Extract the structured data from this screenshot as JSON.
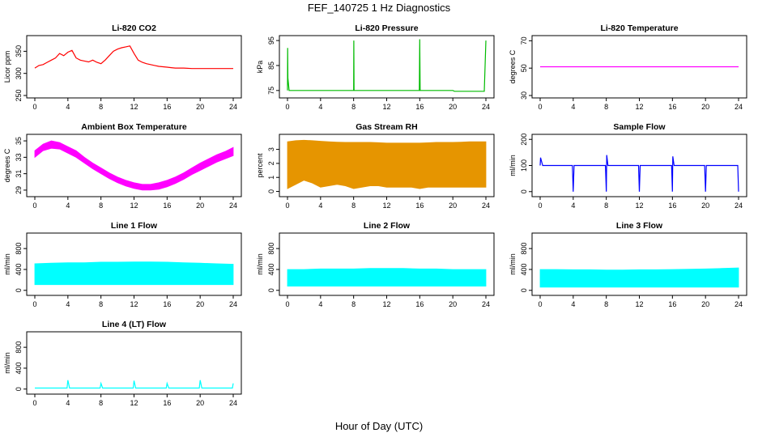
{
  "figure": {
    "title": "FEF_140725  1 Hz Diagnostics",
    "xlabel": "Hour of Day (UTC)"
  },
  "chart_data": [
    {
      "type": "line",
      "title": "Li-820 CO2",
      "ylabel": "Licor ppm",
      "color": "#ff0000",
      "ylim": [
        250,
        380
      ],
      "yticks": [
        250,
        300,
        350
      ],
      "xlim": [
        0,
        24
      ],
      "xticks": [
        0,
        4,
        8,
        12,
        16,
        20,
        24
      ],
      "x": [
        0,
        0.5,
        1,
        1.5,
        2,
        2.5,
        3,
        3.5,
        4,
        4.5,
        5,
        5.5,
        6,
        6.5,
        7,
        7.5,
        8,
        8.5,
        9,
        9.5,
        10,
        10.5,
        11,
        11.5,
        12,
        12.5,
        13,
        13.5,
        14,
        14.5,
        15,
        15.5,
        16,
        16.5,
        17,
        18,
        19,
        20,
        21,
        22,
        23,
        24
      ],
      "y": [
        312,
        318,
        320,
        325,
        330,
        335,
        345,
        340,
        348,
        352,
        335,
        330,
        328,
        326,
        330,
        325,
        322,
        330,
        340,
        350,
        355,
        358,
        360,
        362,
        345,
        330,
        325,
        322,
        320,
        318,
        316,
        315,
        314,
        313,
        312,
        312,
        311,
        311,
        311,
        311,
        311,
        311
      ]
    },
    {
      "type": "line",
      "title": "Li-820 Pressure",
      "ylabel": "kPa",
      "color": "#00bb00",
      "ylim": [
        73,
        96
      ],
      "yticks": [
        75,
        85,
        95
      ],
      "xlim": [
        0,
        24
      ],
      "xticks": [
        0,
        4,
        8,
        12,
        16,
        20,
        24
      ],
      "x": [
        0,
        0.02,
        0.05,
        0.2,
        8.0,
        8.02,
        8.05,
        15.95,
        16.0,
        16.05,
        20,
        20.2,
        23.8,
        24.0
      ],
      "y": [
        75,
        92,
        80,
        75,
        75,
        95,
        75,
        75,
        95.5,
        75,
        75,
        74.7,
        74.7,
        95
      ]
    },
    {
      "type": "line",
      "title": "Li-820 Temperature",
      "ylabel": "degrees C",
      "color": "#ff00ff",
      "ylim": [
        30,
        72
      ],
      "yticks": [
        30,
        50,
        70
      ],
      "xlim": [
        0,
        24
      ],
      "xticks": [
        0,
        4,
        8,
        12,
        16,
        20,
        24
      ],
      "x": [
        0,
        24
      ],
      "y": [
        51,
        51
      ]
    },
    {
      "type": "area",
      "title": "Ambient Box Temperature",
      "ylabel": "degrees C",
      "color": "#ff00ff",
      "ylim": [
        28.5,
        35.5
      ],
      "yticks": [
        29,
        31,
        33,
        35
      ],
      "xlim": [
        0,
        24
      ],
      "xticks": [
        0,
        4,
        8,
        12,
        16,
        20,
        24
      ],
      "x": [
        0,
        1,
        2,
        3,
        4,
        5,
        6,
        7,
        8,
        9,
        10,
        11,
        12,
        13,
        14,
        15,
        16,
        17,
        18,
        19,
        20,
        21,
        22,
        23,
        24
      ],
      "ymin": [
        33.0,
        33.8,
        34.1,
        34.0,
        33.5,
        33.0,
        32.3,
        31.6,
        31.0,
        30.4,
        29.9,
        29.5,
        29.2,
        29.0,
        29.0,
        29.1,
        29.4,
        29.8,
        30.3,
        30.9,
        31.4,
        31.9,
        32.4,
        32.8,
        33.2
      ],
      "ymax": [
        33.8,
        34.6,
        35.0,
        34.8,
        34.3,
        33.8,
        33.0,
        32.3,
        31.7,
        31.1,
        30.6,
        30.2,
        29.9,
        29.7,
        29.7,
        29.9,
        30.2,
        30.6,
        31.1,
        31.7,
        32.3,
        32.8,
        33.3,
        33.7,
        34.2
      ]
    },
    {
      "type": "area",
      "title": "Gas Stream RH",
      "ylabel": "percent",
      "color": "#e69500",
      "ylim": [
        -0.2,
        3.9
      ],
      "yticks": [
        0,
        1,
        2,
        3
      ],
      "xlim": [
        0,
        24
      ],
      "xticks": [
        0,
        4,
        8,
        12,
        16,
        20,
        24
      ],
      "x": [
        0,
        1,
        2,
        3,
        4,
        5,
        6,
        7,
        8,
        9,
        10,
        11,
        12,
        13,
        14,
        15,
        16,
        17,
        18,
        19,
        20,
        21,
        22,
        23,
        24
      ],
      "ymin": [
        0.2,
        0.5,
        0.8,
        0.6,
        0.3,
        0.4,
        0.5,
        0.4,
        0.2,
        0.3,
        0.4,
        0.4,
        0.3,
        0.3,
        0.3,
        0.3,
        0.2,
        0.3,
        0.3,
        0.3,
        0.3,
        0.3,
        0.3,
        0.3,
        0.3
      ],
      "ymax": [
        3.55,
        3.62,
        3.65,
        3.62,
        3.58,
        3.55,
        3.52,
        3.5,
        3.5,
        3.5,
        3.5,
        3.48,
        3.45,
        3.45,
        3.45,
        3.45,
        3.45,
        3.47,
        3.5,
        3.5,
        3.5,
        3.52,
        3.55,
        3.55,
        3.55
      ]
    },
    {
      "type": "line",
      "title": "Sample Flow",
      "ylabel": "ml/min",
      "color": "#0000ff",
      "ylim": [
        -10,
        210
      ],
      "yticks": [
        0,
        100,
        200
      ],
      "xlim": [
        0,
        24
      ],
      "xticks": [
        0,
        4,
        8,
        12,
        16,
        20,
        24
      ],
      "x": [
        0,
        0.05,
        0.3,
        3.9,
        4.0,
        4.1,
        7.9,
        8.0,
        8.05,
        8.2,
        11.9,
        12.0,
        12.1,
        15.9,
        16.0,
        16.05,
        16.2,
        19.9,
        20.0,
        20.1,
        23.9,
        24.0
      ],
      "y": [
        100,
        130,
        100,
        100,
        0,
        100,
        100,
        0,
        140,
        100,
        100,
        0,
        100,
        100,
        0,
        135,
        100,
        100,
        0,
        100,
        100,
        0
      ]
    },
    {
      "type": "area",
      "title": "Line 1 Flow",
      "ylabel": "ml/min",
      "color": "#00ffff",
      "ylim": [
        -50,
        1050
      ],
      "yticks": [
        0,
        400,
        800
      ],
      "xlim": [
        0,
        24
      ],
      "xticks": [
        0,
        4,
        8,
        12,
        16,
        20,
        24
      ],
      "x": [
        0,
        2,
        4,
        6,
        8,
        10,
        12,
        14,
        16,
        18,
        20,
        22,
        24
      ],
      "ymin": [
        110,
        110,
        110,
        110,
        110,
        110,
        110,
        110,
        110,
        110,
        110,
        110,
        110
      ],
      "ymax": [
        510,
        520,
        530,
        530,
        540,
        540,
        545,
        545,
        540,
        530,
        520,
        510,
        500
      ]
    },
    {
      "type": "area",
      "title": "Line 2 Flow",
      "ylabel": "ml/min",
      "color": "#00ffff",
      "ylim": [
        -50,
        1050
      ],
      "yticks": [
        0,
        400,
        800
      ],
      "xlim": [
        0,
        24
      ],
      "xticks": [
        0,
        4,
        8,
        12,
        16,
        20,
        24
      ],
      "x": [
        0,
        2,
        4,
        6,
        8,
        10,
        12,
        14,
        16,
        18,
        20,
        22,
        24
      ],
      "ymin": [
        80,
        80,
        80,
        80,
        80,
        80,
        80,
        80,
        80,
        80,
        80,
        80,
        80
      ],
      "ymax": [
        400,
        400,
        410,
        410,
        410,
        420,
        420,
        420,
        410,
        410,
        400,
        400,
        400
      ]
    },
    {
      "type": "area",
      "title": "Line 3 Flow",
      "ylabel": "ml/min",
      "color": "#00ffff",
      "ylim": [
        -50,
        1050
      ],
      "yticks": [
        0,
        400,
        800
      ],
      "xlim": [
        0,
        24
      ],
      "xticks": [
        0,
        4,
        8,
        12,
        16,
        20,
        24
      ],
      "x": [
        0,
        2,
        4,
        6,
        8,
        10,
        12,
        14,
        16,
        18,
        20,
        22,
        24
      ],
      "ymin": [
        60,
        60,
        60,
        60,
        60,
        60,
        60,
        60,
        60,
        60,
        60,
        60,
        60
      ],
      "ymax": [
        400,
        400,
        395,
        395,
        390,
        390,
        395,
        395,
        400,
        405,
        410,
        420,
        430
      ]
    },
    {
      "type": "line",
      "title": "Line 4 (LT) Flow",
      "ylabel": "ml/min",
      "color": "#00ffff",
      "ylim": [
        -50,
        1050
      ],
      "yticks": [
        0,
        400,
        800
      ],
      "xlim": [
        0,
        24
      ],
      "xticks": [
        0,
        4,
        8,
        12,
        16,
        20,
        24
      ],
      "x": [
        0,
        3.9,
        4.0,
        4.2,
        7.9,
        8.0,
        8.2,
        11.9,
        12.0,
        12.2,
        15.9,
        16.0,
        16.2,
        19.9,
        20.0,
        20.2,
        23.9,
        24.0
      ],
      "y": [
        20,
        20,
        170,
        20,
        20,
        110,
        20,
        20,
        160,
        20,
        20,
        110,
        20,
        20,
        170,
        20,
        20,
        110
      ]
    }
  ]
}
